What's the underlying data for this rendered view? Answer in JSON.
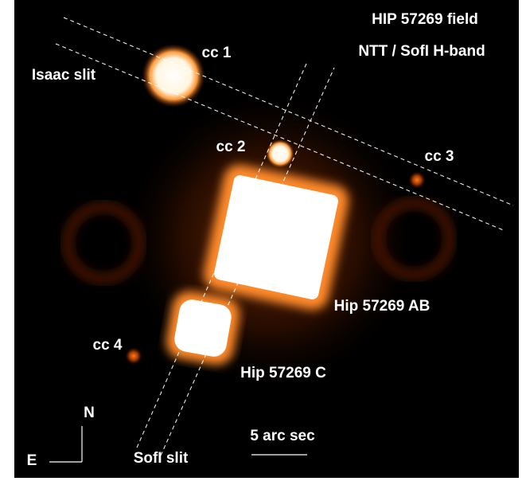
{
  "title": "HIP 57269 field",
  "subtitle": "NTT / SofI H-band",
  "labels": [
    {
      "text": "Isaac slit"
    },
    {
      "text": "cc 1"
    },
    {
      "text": "cc 2"
    },
    {
      "text": "cc 3"
    },
    {
      "text": "cc 4"
    },
    {
      "text": "Hip 57269 AB"
    },
    {
      "text": "Hip 57269 C"
    },
    {
      "text": "N"
    },
    {
      "text": "E"
    },
    {
      "text": "5 arc sec"
    },
    {
      "text": "SofI slit"
    }
  ]
}
